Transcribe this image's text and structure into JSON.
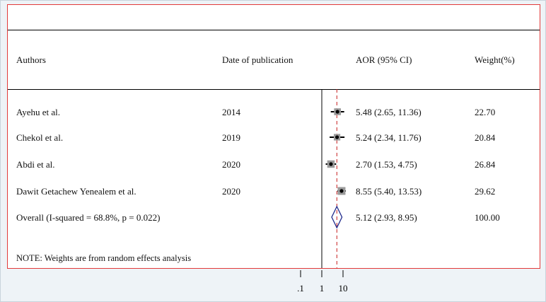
{
  "header": {
    "authors": "Authors",
    "date": "Date of publication",
    "aor": "AOR (95% CI)",
    "weight": "Weight(%)"
  },
  "chart_data": {
    "type": "forest",
    "x_scale": "log",
    "x_ticks": [
      0.1,
      1,
      10
    ],
    "x_tick_labels": [
      ".1",
      "1",
      "10"
    ],
    "null_line": 1,
    "overall_line": 5.12,
    "rows": [
      {
        "author": "Ayehu et al.",
        "year": "2014",
        "aor": 5.48,
        "lo": 2.65,
        "hi": 11.36,
        "ci_text": "5.48 (2.65, 11.36)",
        "weight": 22.7,
        "weight_text": "22.70"
      },
      {
        "author": "Chekol et al.",
        "year": "2019",
        "aor": 5.24,
        "lo": 2.34,
        "hi": 11.76,
        "ci_text": "5.24 (2.34, 11.76)",
        "weight": 20.84,
        "weight_text": "20.84"
      },
      {
        "author": "Abdi et al.",
        "year": "2020",
        "aor": 2.7,
        "lo": 1.53,
        "hi": 4.75,
        "ci_text": "2.70 (1.53, 4.75)",
        "weight": 26.84,
        "weight_text": "26.84"
      },
      {
        "author": "Dawit Getachew Yenealem et al.",
        "year": "2020",
        "aor": 8.55,
        "lo": 5.4,
        "hi": 13.53,
        "ci_text": "8.55 (5.40, 13.53)",
        "weight": 29.62,
        "weight_text": "29.62"
      }
    ],
    "overall": {
      "label": "Overall  (I-squared = 68.8%, p = 0.022)",
      "aor": 5.12,
      "lo": 2.93,
      "hi": 8.95,
      "ci_text": "5.12 (2.93, 8.95)",
      "weight_text": "100.00"
    },
    "note": "NOTE: Weights are from random effects analysis"
  },
  "colors": {
    "border": "#e23a3a",
    "overall_line": "#c81e1e",
    "diamond": "#1f2a8c",
    "box": "#9a9a9a"
  }
}
